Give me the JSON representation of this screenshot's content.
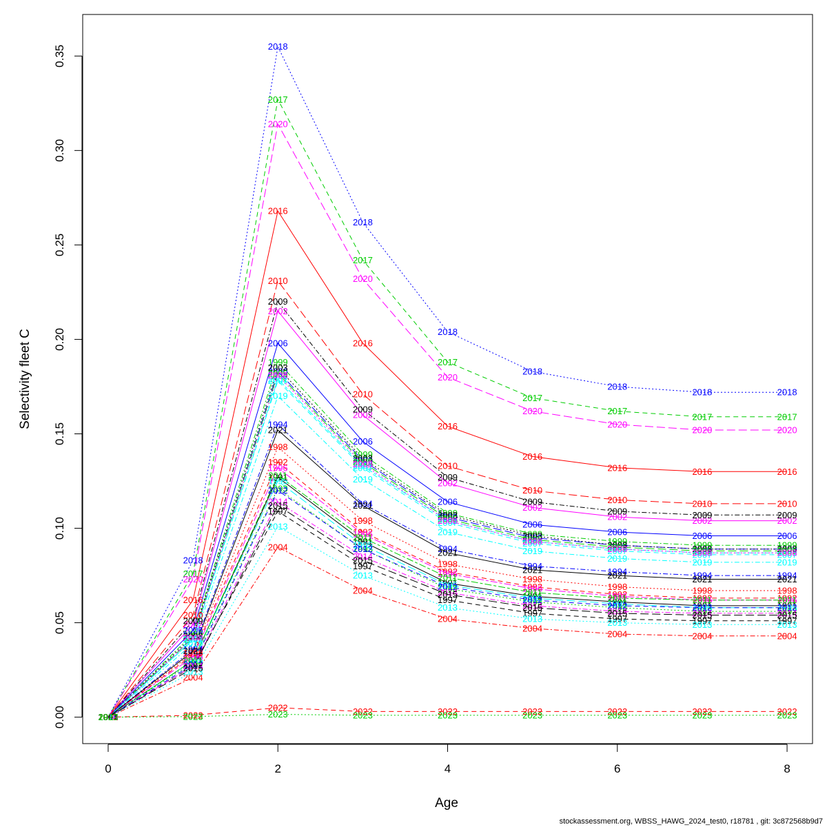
{
  "chart_data": {
    "type": "line",
    "title": "",
    "xlabel": "Age",
    "ylabel": "Selectivity fleet C",
    "xlim": [
      -0.3,
      8.3
    ],
    "ylim": [
      -0.014,
      0.372
    ],
    "xticks": [
      "0",
      "2",
      "4",
      "6",
      "8"
    ],
    "yticks": [
      "0.00",
      "0.05",
      "0.10",
      "0.15",
      "0.20",
      "0.25",
      "0.30",
      "0.35"
    ],
    "x": [
      0,
      1,
      2,
      3,
      4,
      5,
      6,
      7,
      8
    ],
    "series": [
      {
        "name": "1991",
        "color": "#000000",
        "dash": "solid",
        "values": [
          0,
          0.03,
          0.127,
          0.093,
          0.071,
          0.064,
          0.061,
          0.059,
          0.059
        ]
      },
      {
        "name": "1992",
        "color": "#ff0000",
        "dash": "dashed",
        "values": [
          0,
          0.033,
          0.135,
          0.098,
          0.077,
          0.069,
          0.065,
          0.063,
          0.063
        ]
      },
      {
        "name": "1993",
        "color": "#00cd00",
        "dash": "dotted",
        "values": [
          0,
          0.029,
          0.121,
          0.089,
          0.068,
          0.061,
          0.058,
          0.056,
          0.056
        ]
      },
      {
        "name": "1994",
        "color": "#0000ff",
        "dash": "dotdash",
        "values": [
          0,
          0.036,
          0.155,
          0.113,
          0.089,
          0.08,
          0.077,
          0.075,
          0.075
        ]
      },
      {
        "name": "1995",
        "color": "#00ffff",
        "dash": "longdash",
        "values": [
          0,
          0.03,
          0.125,
          0.091,
          0.07,
          0.063,
          0.06,
          0.058,
          0.058
        ]
      },
      {
        "name": "1996",
        "color": "#ff00ff",
        "dash": "twodash",
        "values": [
          0,
          0.032,
          0.132,
          0.097,
          0.076,
          0.068,
          0.064,
          0.062,
          0.062
        ]
      },
      {
        "name": "1997",
        "color": "#000000",
        "dash": "dashed",
        "values": [
          0,
          0.027,
          0.109,
          0.08,
          0.062,
          0.055,
          0.052,
          0.051,
          0.051
        ]
      },
      {
        "name": "1998",
        "color": "#ff0000",
        "dash": "dotted",
        "values": [
          0,
          0.034,
          0.143,
          0.104,
          0.081,
          0.073,
          0.069,
          0.067,
          0.067
        ]
      },
      {
        "name": "1999",
        "color": "#00cd00",
        "dash": "dotdash",
        "values": [
          0,
          0.044,
          0.188,
          0.139,
          0.108,
          0.097,
          0.093,
          0.091,
          0.091
        ]
      },
      {
        "name": "2000",
        "color": "#0000ff",
        "dash": "longdash",
        "values": [
          0,
          0.042,
          0.183,
          0.136,
          0.106,
          0.095,
          0.091,
          0.089,
          0.089
        ]
      },
      {
        "name": "2001",
        "color": "#00ffff",
        "dash": "twodash",
        "values": [
          0,
          0.041,
          0.179,
          0.133,
          0.104,
          0.093,
          0.089,
          0.087,
          0.087
        ]
      },
      {
        "name": "2002",
        "color": "#ff00ff",
        "dash": "solid",
        "values": [
          0,
          0.049,
          0.215,
          0.16,
          0.124,
          0.111,
          0.106,
          0.104,
          0.104
        ]
      },
      {
        "name": "2003",
        "color": "#000000",
        "dash": "dotted",
        "values": [
          0,
          0.043,
          0.185,
          0.137,
          0.107,
          0.096,
          0.091,
          0.089,
          0.089
        ]
      },
      {
        "name": "2004",
        "color": "#ff0000",
        "dash": "dotdash",
        "values": [
          0,
          0.021,
          0.09,
          0.067,
          0.052,
          0.047,
          0.044,
          0.043,
          0.043
        ]
      },
      {
        "name": "2005",
        "color": "#00cd00",
        "dash": "longdash",
        "values": [
          0,
          0.042,
          0.182,
          0.135,
          0.105,
          0.094,
          0.09,
          0.088,
          0.088
        ]
      },
      {
        "name": "2006",
        "color": "#0000ff",
        "dash": "solid",
        "values": [
          0,
          0.046,
          0.198,
          0.146,
          0.114,
          0.102,
          0.098,
          0.096,
          0.096
        ]
      },
      {
        "name": "2007",
        "color": "#00ffff",
        "dash": "dashed",
        "values": [
          0,
          0.041,
          0.178,
          0.132,
          0.103,
          0.092,
          0.088,
          0.086,
          0.086
        ]
      },
      {
        "name": "2008",
        "color": "#ff00ff",
        "dash": "dotted",
        "values": [
          0,
          0.042,
          0.181,
          0.134,
          0.104,
          0.093,
          0.089,
          0.087,
          0.087
        ]
      },
      {
        "name": "2009",
        "color": "#000000",
        "dash": "dotdash",
        "values": [
          0,
          0.051,
          0.22,
          0.163,
          0.127,
          0.114,
          0.109,
          0.107,
          0.107
        ]
      },
      {
        "name": "2010",
        "color": "#ff0000",
        "dash": "longdash",
        "values": [
          0,
          0.054,
          0.231,
          0.171,
          0.133,
          0.12,
          0.115,
          0.113,
          0.113
        ]
      },
      {
        "name": "2011",
        "color": "#00cd00",
        "dash": "twodash",
        "values": [
          0,
          0.03,
          0.128,
          0.095,
          0.074,
          0.066,
          0.063,
          0.062,
          0.062
        ]
      },
      {
        "name": "2012",
        "color": "#0000ff",
        "dash": "dashed",
        "values": [
          0,
          0.028,
          0.12,
          0.089,
          0.069,
          0.062,
          0.059,
          0.058,
          0.058
        ]
      },
      {
        "name": "2013",
        "color": "#00ffff",
        "dash": "dotted",
        "values": [
          0,
          0.024,
          0.101,
          0.075,
          0.058,
          0.052,
          0.05,
          0.049,
          0.049
        ]
      },
      {
        "name": "2014",
        "color": "#ff00ff",
        "dash": "dotdash",
        "values": [
          0,
          0.027,
          0.114,
          0.085,
          0.066,
          0.059,
          0.056,
          0.055,
          0.055
        ]
      },
      {
        "name": "2015",
        "color": "#000000",
        "dash": "longdash",
        "values": [
          0,
          0.026,
          0.112,
          0.083,
          0.065,
          0.058,
          0.055,
          0.054,
          0.054
        ]
      },
      {
        "name": "2016",
        "color": "#ff0000",
        "dash": "solid",
        "values": [
          0,
          0.062,
          0.268,
          0.198,
          0.154,
          0.138,
          0.132,
          0.13,
          0.13
        ]
      },
      {
        "name": "2017",
        "color": "#00cd00",
        "dash": "dashed",
        "values": [
          0,
          0.076,
          0.327,
          0.242,
          0.188,
          0.169,
          0.162,
          0.159,
          0.159
        ]
      },
      {
        "name": "2018",
        "color": "#0000ff",
        "dash": "dotted",
        "values": [
          0,
          0.083,
          0.355,
          0.262,
          0.204,
          0.183,
          0.175,
          0.172,
          0.172
        ]
      },
      {
        "name": "2019",
        "color": "#00ffff",
        "dash": "dotdash",
        "values": [
          0,
          0.039,
          0.17,
          0.126,
          0.098,
          0.088,
          0.084,
          0.082,
          0.082
        ]
      },
      {
        "name": "2020",
        "color": "#ff00ff",
        "dash": "longdash",
        "values": [
          0,
          0.073,
          0.314,
          0.232,
          0.18,
          0.162,
          0.155,
          0.152,
          0.152
        ]
      },
      {
        "name": "2021",
        "color": "#000000",
        "dash": "solid",
        "values": [
          0,
          0.035,
          0.152,
          0.112,
          0.087,
          0.078,
          0.075,
          0.073,
          0.073
        ]
      },
      {
        "name": "2022",
        "color": "#ff0000",
        "dash": "dashed",
        "values": [
          0,
          0.001,
          0.005,
          0.003,
          0.003,
          0.003,
          0.003,
          0.003,
          0.003
        ]
      },
      {
        "name": "2023",
        "color": "#00cd00",
        "dash": "dotted",
        "values": [
          0,
          0.0003,
          0.0015,
          0.001,
          0.001,
          0.001,
          0.001,
          0.001,
          0.001
        ]
      }
    ]
  },
  "footer": "stockassessment.org, WBSS_HAWG_2024_test0, r18781 , git: 3c872568b9d7"
}
